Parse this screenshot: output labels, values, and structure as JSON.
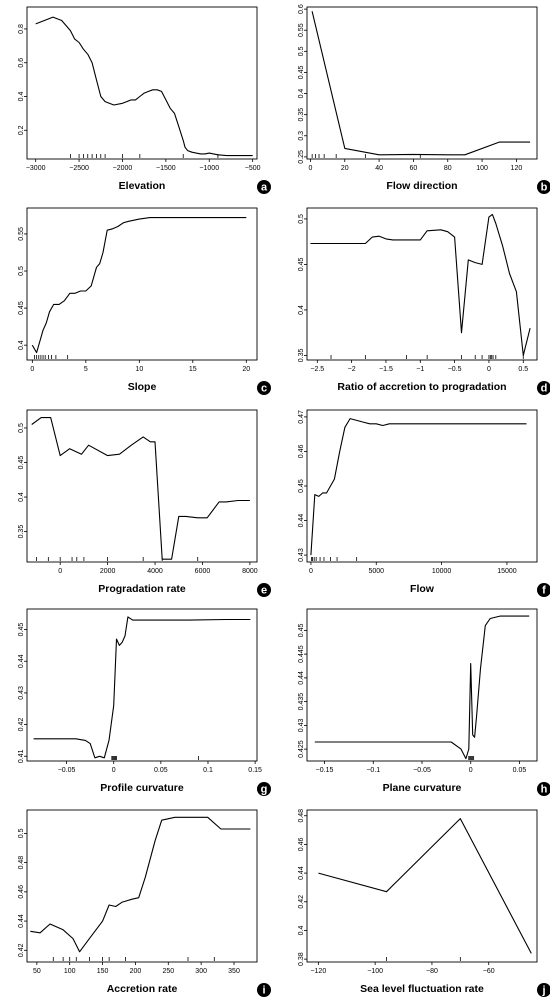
{
  "chart_data": [
    {
      "type": "line",
      "xlabel": "Elevation",
      "panel_label": "a",
      "xlim": [
        -3100,
        -450
      ],
      "ylim": [
        0.03,
        0.93
      ],
      "xticks": [
        -3000,
        -2500,
        -2000,
        -1500,
        -1000,
        -500
      ],
      "yticks": [
        0.2,
        0.4,
        0.6,
        0.8
      ],
      "x": [
        -3000,
        -2900,
        -2800,
        -2700,
        -2650,
        -2600,
        -2550,
        -2500,
        -2450,
        -2400,
        -2350,
        -2300,
        -2250,
        -2200,
        -2100,
        -2000,
        -1950,
        -1900,
        -1850,
        -1800,
        -1750,
        -1700,
        -1650,
        -1600,
        -1550,
        -1500,
        -1450,
        -1400,
        -1350,
        -1300,
        -1280,
        -1250,
        -1200,
        -1150,
        -1100,
        -1050,
        -1000,
        -900,
        -800,
        -700,
        -600,
        -500
      ],
      "y": [
        0.83,
        0.85,
        0.87,
        0.85,
        0.82,
        0.79,
        0.74,
        0.72,
        0.68,
        0.65,
        0.6,
        0.5,
        0.4,
        0.37,
        0.35,
        0.36,
        0.37,
        0.38,
        0.38,
        0.4,
        0.42,
        0.43,
        0.44,
        0.44,
        0.43,
        0.38,
        0.33,
        0.3,
        0.22,
        0.14,
        0.1,
        0.08,
        0.07,
        0.065,
        0.06,
        0.06,
        0.065,
        0.055,
        0.05,
        0.05,
        0.05,
        0.05
      ],
      "rug": [
        -2600,
        -2500,
        -2450,
        -2400,
        -2350,
        -2300,
        -2250,
        -2200,
        -2000,
        -1800,
        -1300,
        -900
      ]
    },
    {
      "type": "line",
      "xlabel": "Flow direction",
      "panel_label": "b",
      "xlim": [
        -2,
        132
      ],
      "ylim": [
        0.245,
        0.605
      ],
      "xticks": [
        0,
        20,
        40,
        60,
        80,
        100,
        120
      ],
      "yticks": [
        0.25,
        0.3,
        0.35,
        0.4,
        0.45,
        0.5,
        0.55,
        0.6
      ],
      "x": [
        1,
        20,
        40,
        60,
        80,
        90,
        110,
        120,
        128
      ],
      "y": [
        0.595,
        0.27,
        0.255,
        0.256,
        0.255,
        0.255,
        0.285,
        0.285,
        0.285
      ],
      "rug": [
        1,
        3,
        5,
        8,
        15,
        32,
        64
      ]
    },
    {
      "type": "line",
      "xlabel": "Slope",
      "panel_label": "c",
      "xlim": [
        -0.5,
        21
      ],
      "ylim": [
        0.38,
        0.585
      ],
      "xticks": [
        0,
        5,
        10,
        15,
        20
      ],
      "yticks": [
        0.4,
        0.45,
        0.5,
        0.55
      ],
      "x": [
        0,
        0.4,
        0.7,
        1.0,
        1.3,
        1.6,
        2.0,
        2.5,
        3.0,
        3.5,
        4.0,
        4.5,
        5.0,
        5.5,
        6.0,
        6.3,
        6.6,
        7.0,
        7.5,
        8.0,
        8.5,
        9.0,
        10,
        11,
        12,
        14,
        16,
        18,
        20
      ],
      "y": [
        0.4,
        0.39,
        0.405,
        0.42,
        0.43,
        0.445,
        0.455,
        0.455,
        0.46,
        0.47,
        0.47,
        0.473,
        0.473,
        0.48,
        0.505,
        0.51,
        0.525,
        0.555,
        0.557,
        0.56,
        0.565,
        0.567,
        0.57,
        0.572,
        0.572,
        0.572,
        0.572,
        0.572,
        0.572
      ],
      "rug": [
        0.2,
        0.4,
        0.6,
        0.8,
        1.0,
        1.2,
        1.5,
        1.8,
        2.2,
        3.3
      ]
    },
    {
      "type": "line",
      "xlabel": "Ratio of accretion to progradation",
      "panel_label": "d",
      "xlim": [
        -2.65,
        0.7
      ],
      "ylim": [
        0.345,
        0.512
      ],
      "xticks": [
        -2.5,
        -2.0,
        -1.5,
        -1.0,
        -0.5,
        0.0,
        0.5
      ],
      "yticks": [
        0.35,
        0.4,
        0.45,
        0.5
      ],
      "x": [
        -2.6,
        -2.3,
        -2.0,
        -1.8,
        -1.7,
        -1.6,
        -1.5,
        -1.4,
        -1.2,
        -1.0,
        -0.9,
        -0.7,
        -0.6,
        -0.5,
        -0.4,
        -0.3,
        -0.2,
        -0.1,
        0.0,
        0.05,
        0.1,
        0.2,
        0.3,
        0.4,
        0.5,
        0.6
      ],
      "y": [
        0.473,
        0.473,
        0.473,
        0.473,
        0.48,
        0.481,
        0.478,
        0.477,
        0.477,
        0.477,
        0.487,
        0.488,
        0.486,
        0.48,
        0.375,
        0.455,
        0.452,
        0.45,
        0.502,
        0.505,
        0.495,
        0.47,
        0.44,
        0.42,
        0.35,
        0.38
      ],
      "rug": [
        -2.3,
        -1.8,
        -1.2,
        -0.9,
        -0.4,
        -0.2,
        -0.1,
        0.0,
        0.02,
        0.04,
        0.06,
        0.1,
        0.5
      ]
    },
    {
      "type": "line",
      "xlabel": "Progradation rate",
      "panel_label": "e",
      "xlim": [
        -1400,
        8300
      ],
      "ylim": [
        0.306,
        0.526
      ],
      "xticks": [
        0,
        2000,
        4000,
        6000,
        8000
      ],
      "yticks": [
        0.35,
        0.4,
        0.45,
        0.5
      ],
      "x": [
        -1200,
        -800,
        -400,
        0,
        400,
        900,
        1200,
        2000,
        2500,
        3000,
        3500,
        3800,
        4000,
        4300,
        4700,
        5000,
        5300,
        5800,
        6200,
        6700,
        7000,
        7500,
        8000
      ],
      "y": [
        0.505,
        0.515,
        0.515,
        0.46,
        0.47,
        0.462,
        0.475,
        0.46,
        0.462,
        0.475,
        0.487,
        0.48,
        0.48,
        0.31,
        0.31,
        0.372,
        0.372,
        0.37,
        0.37,
        0.393,
        0.393,
        0.395,
        0.395
      ],
      "rug": [
        -1000,
        -500,
        0,
        500,
        700,
        1000,
        2000,
        3500,
        4300,
        5800
      ]
    },
    {
      "type": "line",
      "xlabel": "Flow",
      "panel_label": "f",
      "xlim": [
        -300,
        17300
      ],
      "ylim": [
        0.428,
        0.472
      ],
      "xticks": [
        0,
        5000,
        10000,
        15000
      ],
      "yticks": [
        0.43,
        0.44,
        0.45,
        0.46,
        0.47
      ],
      "x": [
        0,
        300,
        600,
        900,
        1200,
        1500,
        1800,
        2200,
        2600,
        3000,
        3500,
        4000,
        4500,
        5000,
        5500,
        6000,
        7000,
        10000,
        13000,
        16500
      ],
      "y": [
        0.43,
        0.4475,
        0.447,
        0.448,
        0.448,
        0.45,
        0.452,
        0.46,
        0.467,
        0.4695,
        0.469,
        0.4685,
        0.468,
        0.468,
        0.4675,
        0.468,
        0.468,
        0.468,
        0.468,
        0.468
      ],
      "rug": [
        50,
        120,
        250,
        400,
        700,
        1000,
        1500,
        2000,
        3500
      ]
    },
    {
      "type": "line",
      "xlabel": "Profile curvature",
      "panel_label": "g",
      "xlim": [
        -0.092,
        0.152
      ],
      "ylim": [
        0.4085,
        0.4565
      ],
      "xticks": [
        -0.05,
        0.0,
        0.05,
        0.1,
        0.15
      ],
      "yticks": [
        0.41,
        0.42,
        0.43,
        0.44,
        0.45
      ],
      "x": [
        -0.085,
        -0.06,
        -0.04,
        -0.03,
        -0.025,
        -0.02,
        -0.015,
        -0.01,
        -0.005,
        0.0,
        0.003,
        0.006,
        0.009,
        0.012,
        0.015,
        0.02,
        0.04,
        0.08,
        0.12,
        0.145
      ],
      "y": [
        0.4155,
        0.4155,
        0.4155,
        0.415,
        0.414,
        0.4095,
        0.41,
        0.4095,
        0.415,
        0.426,
        0.447,
        0.445,
        0.446,
        0.448,
        0.454,
        0.453,
        0.453,
        0.453,
        0.4532,
        0.4532
      ],
      "rug": [
        -0.002,
        -0.001,
        0.0,
        0.001,
        0.002,
        0.003,
        0.09
      ]
    },
    {
      "type": "line",
      "xlabel": "Plane curvature",
      "panel_label": "h",
      "xlim": [
        -0.168,
        0.068
      ],
      "ylim": [
        0.4225,
        0.4545
      ],
      "xticks": [
        -0.15,
        -0.1,
        -0.05,
        0.0,
        0.05
      ],
      "yticks": [
        0.425,
        0.43,
        0.435,
        0.44,
        0.445,
        0.45
      ],
      "x": [
        -0.16,
        -0.1,
        -0.05,
        -0.02,
        -0.01,
        -0.005,
        -0.002,
        0.0,
        0.002,
        0.004,
        0.006,
        0.01,
        0.015,
        0.02,
        0.03,
        0.06
      ],
      "y": [
        0.4265,
        0.4265,
        0.4265,
        0.4265,
        0.425,
        0.423,
        0.425,
        0.443,
        0.428,
        0.4275,
        0.432,
        0.442,
        0.451,
        0.4525,
        0.453,
        0.453
      ],
      "rug": [
        -0.002,
        -0.001,
        0.0,
        0.001,
        0.002,
        0.003
      ]
    },
    {
      "type": "line",
      "xlabel": "Accretion rate",
      "panel_label": "i",
      "xlim": [
        35,
        385
      ],
      "ylim": [
        0.412,
        0.516
      ],
      "xticks": [
        50,
        100,
        150,
        200,
        250,
        300,
        350
      ],
      "yticks": [
        0.42,
        0.44,
        0.46,
        0.48,
        0.5
      ],
      "x": [
        40,
        55,
        70,
        90,
        105,
        115,
        130,
        150,
        160,
        170,
        180,
        195,
        205,
        215,
        230,
        240,
        260,
        280,
        310,
        330,
        375
      ],
      "y": [
        0.433,
        0.432,
        0.438,
        0.434,
        0.428,
        0.419,
        0.428,
        0.44,
        0.451,
        0.45,
        0.453,
        0.455,
        0.456,
        0.47,
        0.495,
        0.509,
        0.511,
        0.511,
        0.511,
        0.503,
        0.503
      ],
      "rug": [
        75,
        90,
        100,
        110,
        130,
        150,
        160,
        185,
        280,
        320
      ]
    },
    {
      "type": "line",
      "xlabel": "Sea level fluctuation rate",
      "panel_label": "j",
      "xlim": [
        -124,
        -43
      ],
      "ylim": [
        0.378,
        0.484
      ],
      "xticks": [
        -120,
        -100,
        -80,
        -60
      ],
      "yticks": [
        0.38,
        0.4,
        0.42,
        0.44,
        0.46,
        0.48
      ],
      "x": [
        -120,
        -96,
        -70,
        -45
      ],
      "y": [
        0.44,
        0.427,
        0.478,
        0.384
      ],
      "rug": [
        -96,
        -70
      ]
    }
  ]
}
